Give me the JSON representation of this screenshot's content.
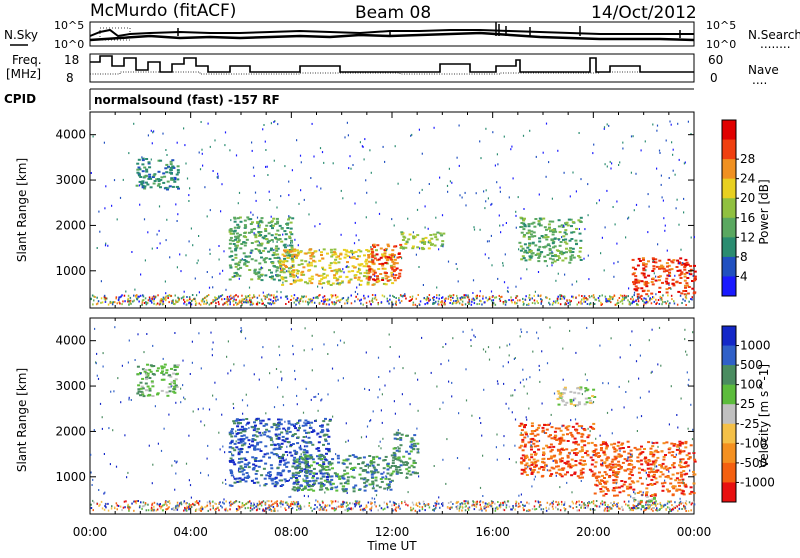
{
  "header": {
    "station": "McMurdo (fitACF)",
    "beam": "Beam 08",
    "date": "14/Oct/2012"
  },
  "summary_panels": {
    "sky_label": "N.Sky",
    "search_label": "N.Search",
    "search_key": "........",
    "freq_label_1": "Freq.",
    "freq_label_2": "[MHz]",
    "nave_label": "Nave",
    "nave_key": "....",
    "noise_ticks_left": [
      "10^5",
      "10^0"
    ],
    "noise_ticks_right": [
      "10^5",
      "10^0"
    ],
    "freq_ticks": [
      "18",
      "8"
    ],
    "nave_ticks": [
      "60",
      "0"
    ],
    "cpid_label": "CPID",
    "cpid_text": "normalsound (fast) -157 RF"
  },
  "chart_data": [
    {
      "type": "heatmap",
      "name": "power",
      "ylabel": "Slant Range [km]",
      "yticks": [
        "1000",
        "2000",
        "3000",
        "4000"
      ],
      "ylim": [
        180,
        4500
      ],
      "xlim": [
        0,
        24
      ],
      "colorbar_label": "Power [dB]",
      "colorbar_ticks": [
        "4",
        "8",
        "12",
        "16",
        "20",
        "24",
        "28"
      ],
      "colors": [
        "#1a1aff",
        "#2050c0",
        "#2a8c70",
        "#5aa860",
        "#90c040",
        "#e8d020",
        "#f09020",
        "#f04010",
        "#e00000"
      ],
      "regions": [
        {
          "t": [
            5.5,
            8.0
          ],
          "r": [
            800,
            2200
          ],
          "level": 12
        },
        {
          "t": [
            7.5,
            12.0
          ],
          "r": [
            700,
            1500
          ],
          "level": 20
        },
        {
          "t": [
            11.0,
            12.3
          ],
          "r": [
            800,
            1600
          ],
          "level": 28
        },
        {
          "t": [
            12.3,
            14.0
          ],
          "r": [
            1500,
            1900
          ],
          "level": 16
        },
        {
          "t": [
            1.8,
            3.5
          ],
          "r": [
            2800,
            3500
          ],
          "level": 8
        },
        {
          "t": [
            17.0,
            19.5
          ],
          "r": [
            1200,
            2200
          ],
          "level": 12
        },
        {
          "t": [
            21.5,
            24.0
          ],
          "r": [
            500,
            1300
          ],
          "level": 28
        }
      ]
    },
    {
      "type": "heatmap",
      "name": "velocity",
      "ylabel": "Slant Range [km]",
      "yticks": [
        "1000",
        "2000",
        "3000",
        "4000"
      ],
      "ylim": [
        180,
        4500
      ],
      "xlim": [
        0,
        24
      ],
      "xlabel": "Time UT",
      "xticks": [
        "00:00",
        "04:00",
        "08:00",
        "12:00",
        "16:00",
        "20:00",
        "00:00"
      ],
      "colorbar_label": "Velocity [m s^-1]",
      "colorbar_ticks": [
        "1000",
        "500",
        "100",
        "25",
        "-25",
        "-100",
        "-500",
        "-1000"
      ],
      "colors": [
        "#1428c8",
        "#3060c8",
        "#4a8c60",
        "#5cbc3c",
        "#c0c0c0",
        "#f4c048",
        "#f49020",
        "#f46010",
        "#e81010"
      ],
      "regions": [
        {
          "t": [
            5.5,
            9.5
          ],
          "r": [
            800,
            2300
          ],
          "level": 1000
        },
        {
          "t": [
            8.0,
            12.0
          ],
          "r": [
            700,
            1500
          ],
          "level": 500
        },
        {
          "t": [
            12.0,
            13.0
          ],
          "r": [
            1000,
            2000
          ],
          "level": 500
        },
        {
          "t": [
            17.0,
            20.0
          ],
          "r": [
            1000,
            2200
          ],
          "level": -500
        },
        {
          "t": [
            20.0,
            24.0
          ],
          "r": [
            600,
            1800
          ],
          "level": -500
        },
        {
          "t": [
            21.5,
            22.5
          ],
          "r": [
            300,
            600
          ],
          "level": 100
        },
        {
          "t": [
            18.5,
            20.0
          ],
          "r": [
            2600,
            3000
          ],
          "level": 25
        },
        {
          "t": [
            1.8,
            3.5
          ],
          "r": [
            2800,
            3500
          ],
          "level": 100
        }
      ]
    }
  ]
}
